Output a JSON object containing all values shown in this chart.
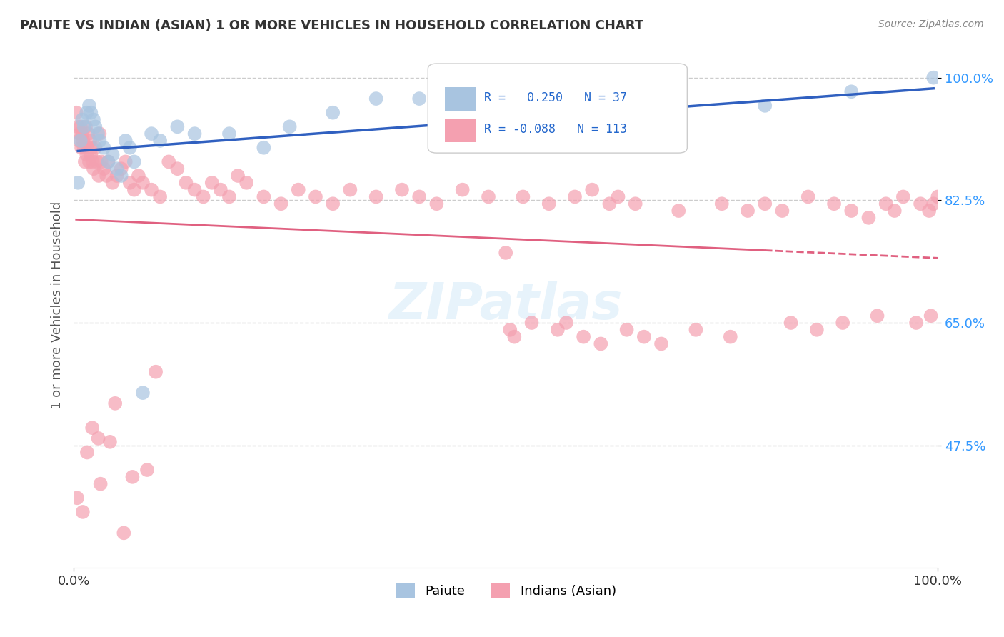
{
  "title": "PAIUTE VS INDIAN (ASIAN) 1 OR MORE VEHICLES IN HOUSEHOLD CORRELATION CHART",
  "source": "Source: ZipAtlas.com",
  "ylabel": "1 or more Vehicles in Household",
  "xlabel": "",
  "xlim": [
    0.0,
    100.0
  ],
  "ylim": [
    30.0,
    105.0
  ],
  "yticks": [
    47.5,
    65.0,
    82.5,
    100.0
  ],
  "xticks": [
    0.0,
    100.0
  ],
  "xtick_labels": [
    "0.0%",
    "100.0%"
  ],
  "ytick_labels": [
    "47.5%",
    "65.0%",
    "82.5%",
    "100.0%"
  ],
  "paiute_R": 0.25,
  "paiute_N": 37,
  "indian_R": -0.088,
  "indian_N": 113,
  "paiute_color": "#a8c4e0",
  "indian_color": "#f4a0b0",
  "paiute_line_color": "#3060c0",
  "indian_line_color": "#e06080",
  "legend_box_color": "#f0f4ff",
  "watermark_text": "ZIPatlas",
  "background_color": "#ffffff",
  "paiute_x": [
    0.5,
    0.8,
    1.0,
    1.2,
    1.5,
    1.8,
    2.0,
    2.3,
    2.5,
    2.8,
    3.0,
    3.5,
    4.0,
    4.5,
    5.0,
    5.5,
    6.0,
    6.5,
    7.0,
    8.0,
    9.0,
    10.0,
    12.0,
    14.0,
    18.0,
    22.0,
    25.0,
    30.0,
    35.0,
    40.0,
    50.0,
    55.0,
    60.0,
    70.0,
    80.0,
    90.0,
    99.5
  ],
  "paiute_y": [
    85.0,
    91.0,
    94.0,
    93.0,
    95.0,
    96.0,
    95.0,
    94.0,
    93.0,
    92.0,
    91.0,
    90.0,
    88.0,
    89.0,
    87.0,
    86.0,
    91.0,
    90.0,
    88.0,
    55.0,
    92.0,
    91.0,
    93.0,
    92.0,
    92.0,
    90.0,
    93.0,
    95.0,
    97.0,
    97.0,
    91.0,
    93.0,
    94.0,
    95.0,
    96.0,
    98.0,
    100.0
  ],
  "indian_x": [
    0.3,
    0.5,
    0.6,
    0.7,
    0.8,
    0.9,
    1.0,
    1.1,
    1.2,
    1.3,
    1.4,
    1.5,
    1.6,
    1.7,
    1.8,
    1.9,
    2.0,
    2.1,
    2.2,
    2.3,
    2.5,
    2.7,
    2.9,
    3.0,
    3.2,
    3.5,
    3.8,
    4.0,
    4.5,
    5.0,
    5.5,
    6.0,
    6.5,
    7.0,
    7.5,
    8.0,
    9.0,
    10.0,
    11.0,
    12.0,
    13.0,
    14.0,
    15.0,
    16.0,
    17.0,
    18.0,
    19.0,
    20.0,
    22.0,
    24.0,
    26.0,
    28.0,
    30.0,
    32.0,
    35.0,
    38.0,
    40.0,
    42.0,
    45.0,
    48.0,
    50.0,
    52.0,
    55.0,
    58.0,
    60.0,
    62.0,
    63.0,
    65.0,
    70.0,
    75.0,
    78.0,
    80.0,
    82.0,
    85.0,
    88.0,
    90.0,
    92.0,
    94.0,
    95.0,
    96.0,
    98.0,
    99.0,
    99.5,
    100.0,
    50.5,
    51.0,
    53.0,
    56.0,
    57.0,
    59.0,
    61.0,
    64.0,
    66.0,
    68.0,
    72.0,
    76.0,
    83.0,
    86.0,
    89.0,
    93.0,
    97.5,
    99.2,
    0.4,
    1.05,
    1.55,
    2.15,
    2.85,
    4.2,
    4.8,
    6.8,
    8.5,
    9.5,
    3.1,
    5.8
  ],
  "indian_y": [
    95.0,
    93.0,
    91.0,
    92.0,
    93.0,
    90.0,
    92.0,
    91.0,
    90.0,
    88.0,
    93.0,
    89.0,
    90.0,
    92.0,
    88.0,
    91.0,
    89.0,
    90.0,
    88.0,
    87.0,
    90.0,
    88.0,
    86.0,
    92.0,
    88.0,
    87.0,
    86.0,
    88.0,
    85.0,
    86.0,
    87.0,
    88.0,
    85.0,
    84.0,
    86.0,
    85.0,
    84.0,
    83.0,
    88.0,
    87.0,
    85.0,
    84.0,
    83.0,
    85.0,
    84.0,
    83.0,
    86.0,
    85.0,
    83.0,
    82.0,
    84.0,
    83.0,
    82.0,
    84.0,
    83.0,
    84.0,
    83.0,
    82.0,
    84.0,
    83.0,
    75.0,
    83.0,
    82.0,
    83.0,
    84.0,
    82.0,
    83.0,
    82.0,
    81.0,
    82.0,
    81.0,
    82.0,
    81.0,
    83.0,
    82.0,
    81.0,
    80.0,
    82.0,
    81.0,
    83.0,
    82.0,
    81.0,
    82.0,
    83.0,
    64.0,
    63.0,
    65.0,
    64.0,
    65.0,
    63.0,
    62.0,
    64.0,
    63.0,
    62.0,
    64.0,
    63.0,
    65.0,
    64.0,
    65.0,
    66.0,
    65.0,
    66.0,
    40.0,
    38.0,
    46.5,
    50.0,
    48.5,
    48.0,
    53.5,
    43.0,
    44.0,
    58.0,
    42.0,
    35.0
  ]
}
